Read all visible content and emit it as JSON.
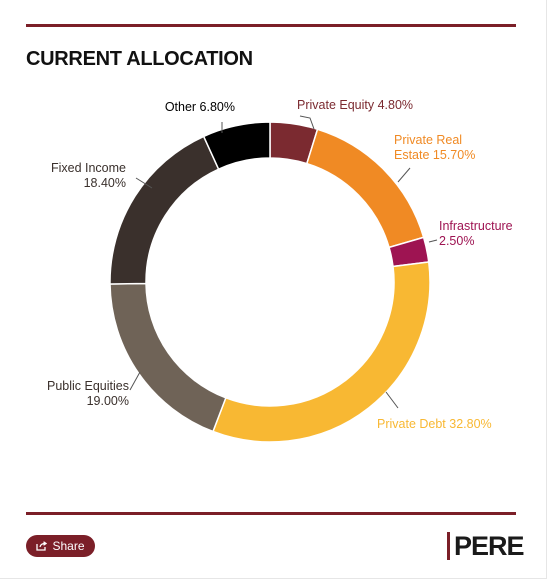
{
  "header": {
    "title": "CURRENT ALLOCATION"
  },
  "footer": {
    "share_label": "Share",
    "logo_text": "PERE"
  },
  "colors": {
    "brand": "#7b1f28",
    "private_equity": "#7b2a30",
    "private_real_estate": "#f08a24",
    "infrastructure": "#9e1452",
    "private_debt": "#f8b833",
    "public_equities": "#6f6357",
    "fixed_income": "#3a302c",
    "other": "#000000"
  },
  "chart_data": {
    "type": "pie",
    "variant": "donut",
    "slices": [
      {
        "label_lines": [
          "Private Equity 4.80%"
        ],
        "value": 4.8,
        "color": "#7b2a30",
        "label_color": "#7b2a30"
      },
      {
        "label_lines": [
          "Private Real",
          "Estate 15.70%"
        ],
        "value": 15.7,
        "color": "#f08a24",
        "label_color": "#f08a24"
      },
      {
        "label_lines": [
          "Infrastructure",
          "2.50%"
        ],
        "value": 2.5,
        "color": "#9e1452",
        "label_color": "#9e1452"
      },
      {
        "label_lines": [
          "Private Debt 32.80%"
        ],
        "value": 32.8,
        "color": "#f8b833",
        "label_color": "#f8b833"
      },
      {
        "label_lines": [
          "Public Equities",
          "19.00%"
        ],
        "value": 19.0,
        "color": "#6f6357",
        "label_color": "#3a302c"
      },
      {
        "label_lines": [
          "Fixed Income",
          "18.40%"
        ],
        "value": 18.4,
        "color": "#3a302c",
        "label_color": "#3a302c"
      },
      {
        "label_lines": [
          "Other 6.80%"
        ],
        "value": 6.8,
        "color": "#000000",
        "label_color": "#000000"
      }
    ]
  }
}
